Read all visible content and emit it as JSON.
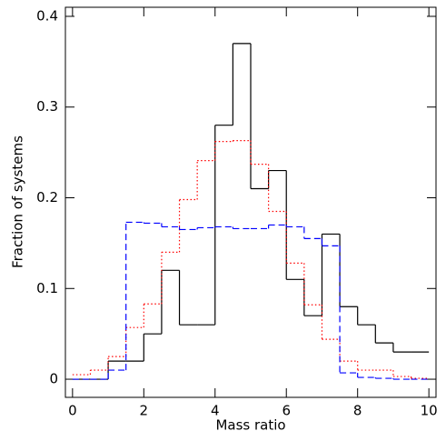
{
  "chart_data": {
    "type": "histogram",
    "xlabel": "Mass ratio",
    "ylabel": "Fraction of systems",
    "bins": [
      0,
      0.5,
      1,
      1.5,
      2,
      2.5,
      3,
      3.5,
      4,
      4.5,
      5,
      5.5,
      6,
      6.5,
      7,
      7.5,
      8,
      8.5,
      9,
      9.5,
      10
    ],
    "series": [
      {
        "color": "#000000",
        "line_style": "solid",
        "values": [
          0,
          0,
          0.02,
          0.02,
          0.05,
          0.12,
          0.06,
          0.06,
          0.28,
          0.37,
          0.21,
          0.23,
          0.11,
          0.07,
          0.16,
          0.08,
          0.06,
          0.04,
          0.03,
          0.03
        ]
      },
      {
        "color": "#ff0000",
        "line_style": "dotted",
        "values": [
          0.005,
          0.01,
          0.025,
          0.057,
          0.083,
          0.14,
          0.198,
          0.241,
          0.262,
          0.263,
          0.237,
          0.185,
          0.128,
          0.082,
          0.044,
          0.02,
          0.01,
          0.01,
          0.003,
          0.001
        ]
      },
      {
        "color": "#0000ff",
        "line_style": "dashed",
        "values": [
          0,
          0,
          0.01,
          0.173,
          0.172,
          0.168,
          0.165,
          0.167,
          0.168,
          0.166,
          0.166,
          0.17,
          0.168,
          0.155,
          0.147,
          0.007,
          0.002,
          0.001,
          0,
          0
        ]
      }
    ],
    "xlim": [
      -0.2,
      10.2
    ],
    "ylim": [
      -0.02,
      0.41
    ],
    "xticks": [
      0,
      2,
      4,
      6,
      8,
      10
    ],
    "yticks": [
      0,
      0.1,
      0.2,
      0.3,
      0.4
    ],
    "grid": false
  }
}
